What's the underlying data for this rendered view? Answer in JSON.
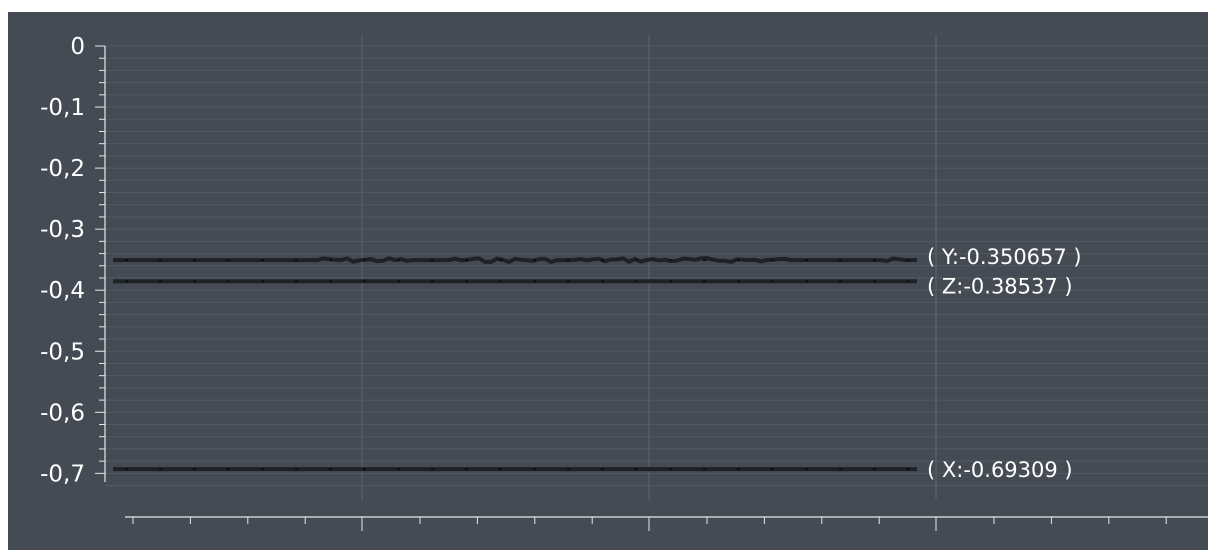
{
  "colors": {
    "frame": "#ffffff",
    "background": "#454b54",
    "grid_major": "#5e646d",
    "grid_minor": "#535963",
    "axis": "#e8e8e8",
    "series_line": "#1e2126",
    "label_text": "#ffffff"
  },
  "chart_data": {
    "type": "line",
    "title": "",
    "xlabel": "",
    "ylabel": "",
    "ylim": [
      -0.72,
      0.0
    ],
    "y_ticks": [
      {
        "value": 0,
        "label": "0"
      },
      {
        "value": -0.1,
        "label": "-0,1"
      },
      {
        "value": -0.2,
        "label": "-0,2"
      },
      {
        "value": -0.3,
        "label": "-0,3"
      },
      {
        "value": -0.4,
        "label": "-0,4"
      },
      {
        "value": -0.5,
        "label": "-0,5"
      },
      {
        "value": -0.6,
        "label": "-0,6"
      },
      {
        "value": -0.7,
        "label": "-0,7"
      }
    ],
    "grid": true,
    "series": [
      {
        "label": "( Y:-0.350657 )",
        "value": -0.350657,
        "noisy": true
      },
      {
        "label": "( Z:-0.38537 )",
        "value": -0.38537,
        "noisy": false
      },
      {
        "label": "( X:-0.69309 )",
        "value": -0.69309,
        "noisy": false
      }
    ]
  }
}
